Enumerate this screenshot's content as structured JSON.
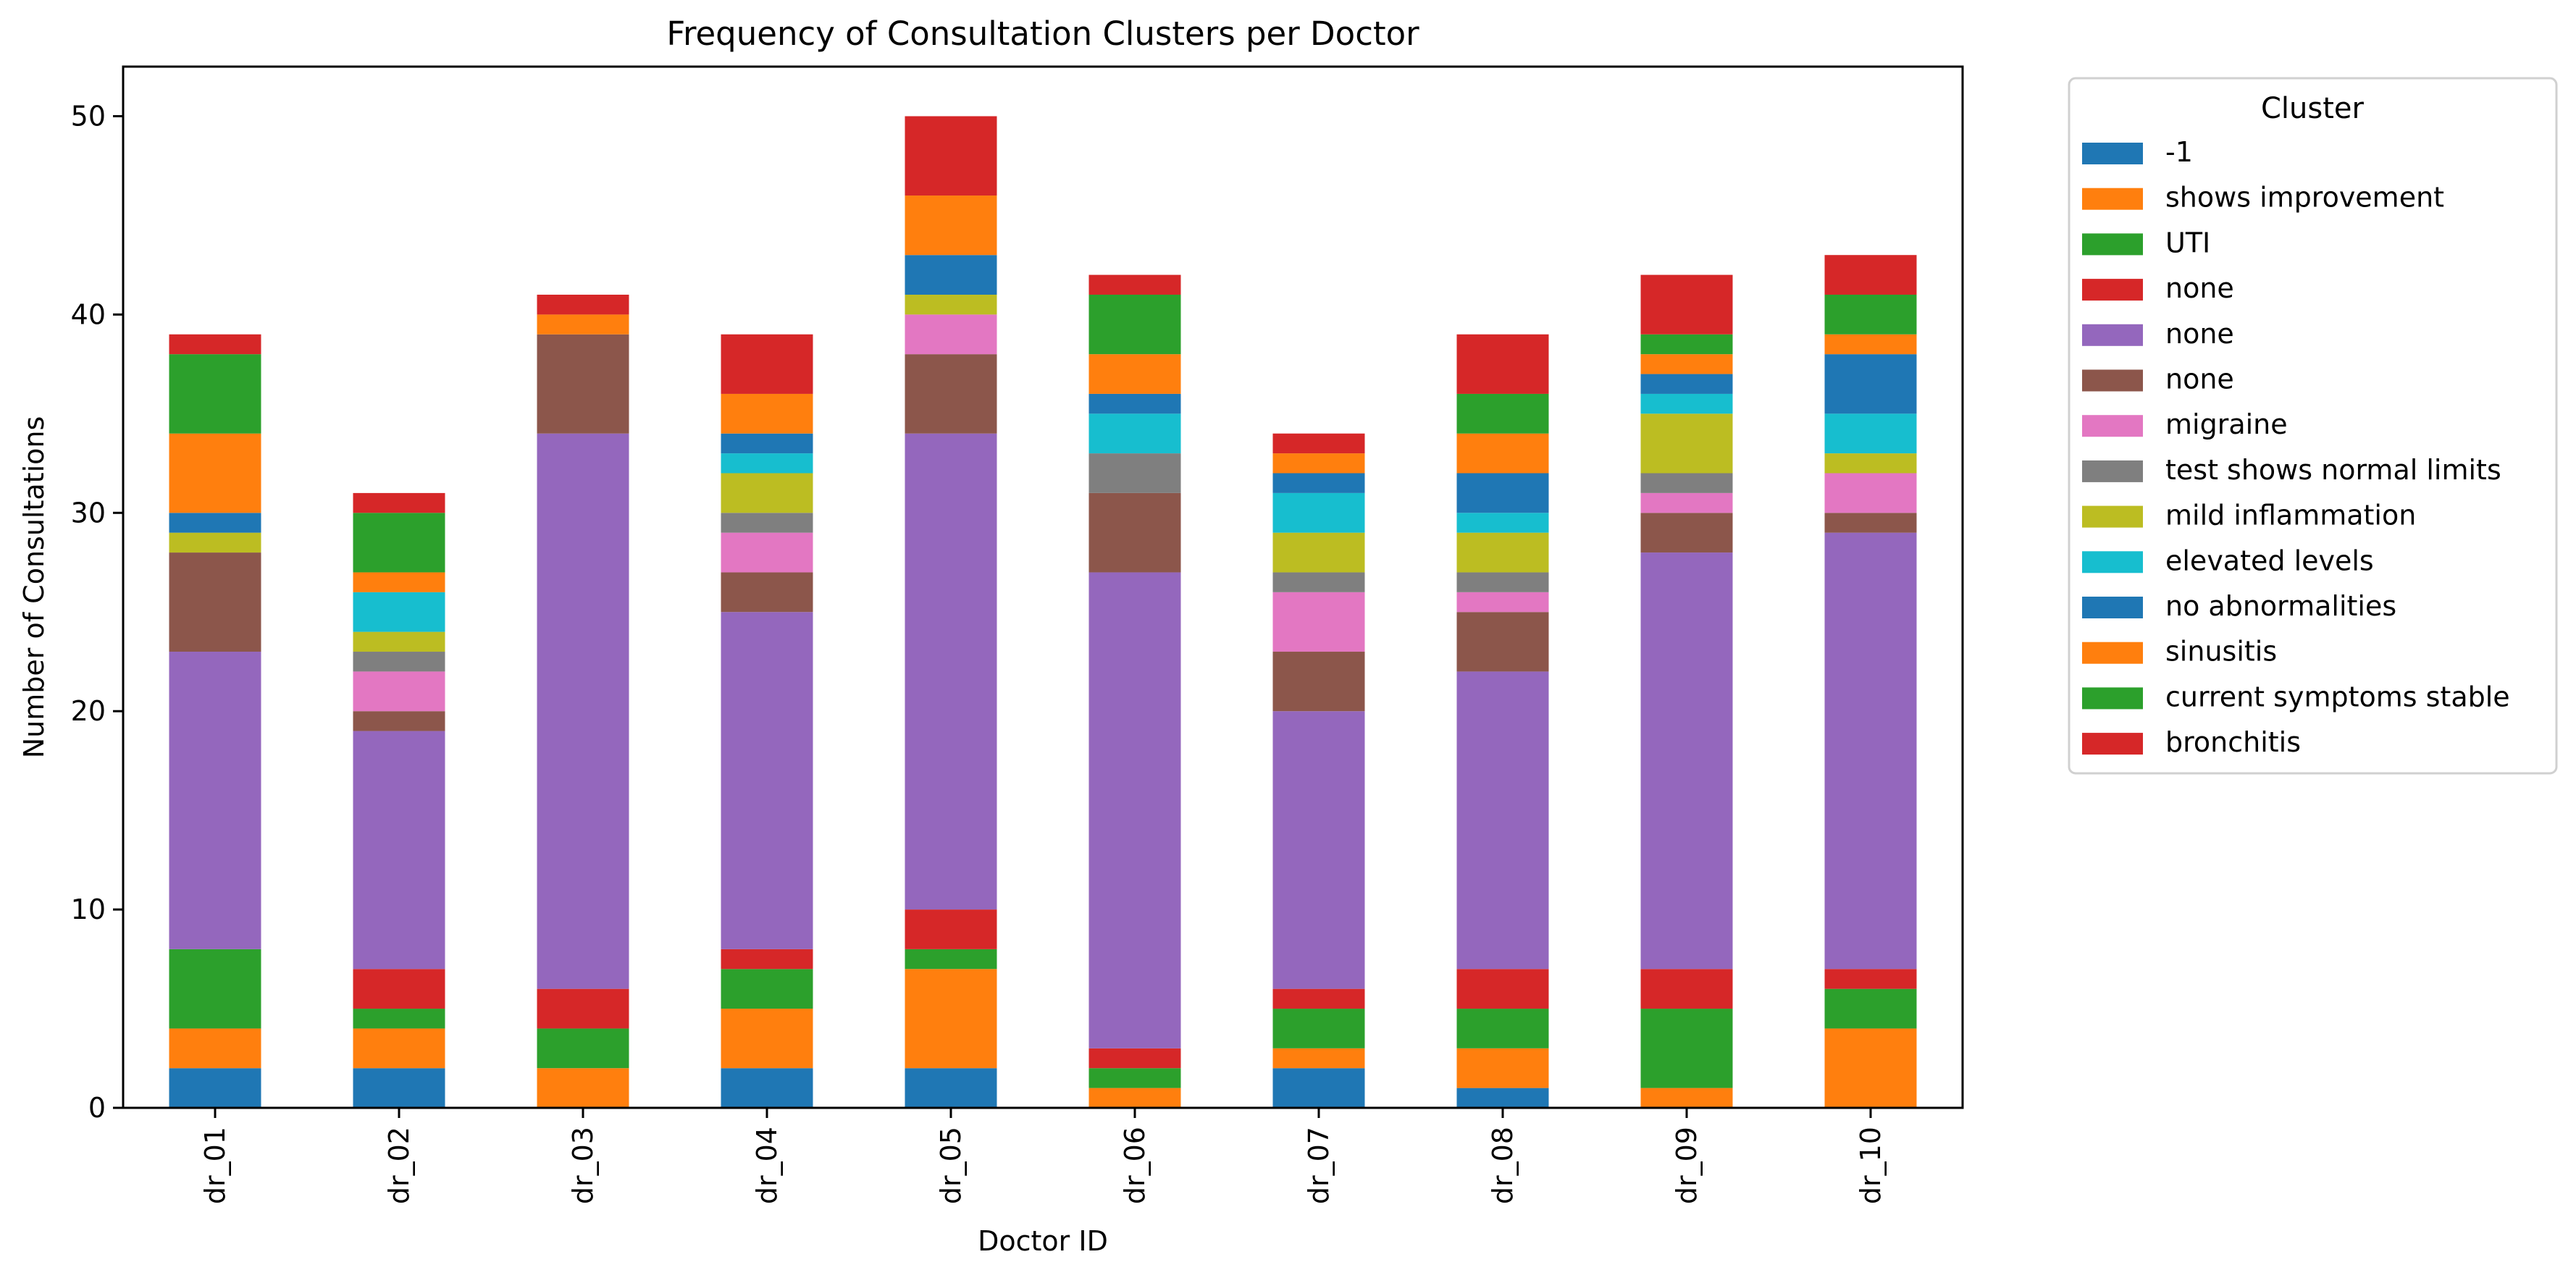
{
  "chart_data": {
    "type": "bar",
    "stacked": true,
    "title": "Frequency of Consultation Clusters per Doctor",
    "xlabel": "Doctor ID",
    "ylabel": "Number of Consultations",
    "ylim": [
      0,
      52.5
    ],
    "yticks": [
      0,
      10,
      20,
      30,
      40,
      50
    ],
    "grid": false,
    "legend": {
      "title": "Cluster",
      "placement": "outside-top-right"
    },
    "categories": [
      "dr_01",
      "dr_02",
      "dr_03",
      "dr_04",
      "dr_05",
      "dr_06",
      "dr_07",
      "dr_08",
      "dr_09",
      "dr_10"
    ],
    "series": [
      {
        "name": "-1",
        "color": "#1f77b4",
        "values": [
          2,
          2,
          0,
          2,
          2,
          0,
          2,
          1,
          0,
          0
        ]
      },
      {
        "name": "shows improvement",
        "color": "#ff7f0e",
        "values": [
          2,
          2,
          2,
          3,
          5,
          1,
          1,
          2,
          1,
          4
        ]
      },
      {
        "name": "UTI",
        "color": "#2ca02c",
        "values": [
          4,
          1,
          2,
          2,
          1,
          1,
          2,
          2,
          4,
          2
        ]
      },
      {
        "name": "none",
        "color": "#d62728",
        "values": [
          0,
          2,
          2,
          1,
          2,
          1,
          1,
          2,
          2,
          1
        ]
      },
      {
        "name": "none",
        "color": "#9467bd",
        "values": [
          15,
          12,
          28,
          17,
          24,
          24,
          14,
          15,
          21,
          22
        ]
      },
      {
        "name": "none",
        "color": "#8c564b",
        "values": [
          5,
          1,
          5,
          2,
          4,
          4,
          3,
          3,
          2,
          1
        ]
      },
      {
        "name": "migraine",
        "color": "#e377c2",
        "values": [
          0,
          2,
          0,
          2,
          2,
          0,
          3,
          1,
          1,
          2
        ]
      },
      {
        "name": "test shows normal limits",
        "color": "#7f7f7f",
        "values": [
          0,
          1,
          0,
          1,
          0,
          2,
          1,
          1,
          1,
          0
        ]
      },
      {
        "name": "mild inflammation",
        "color": "#bcbd22",
        "values": [
          1,
          1,
          0,
          2,
          1,
          0,
          2,
          2,
          3,
          1
        ]
      },
      {
        "name": "elevated levels",
        "color": "#17becf",
        "values": [
          0,
          2,
          0,
          1,
          0,
          2,
          2,
          1,
          1,
          2
        ]
      },
      {
        "name": "no abnormalities",
        "color": "#1f77b4",
        "values": [
          1,
          0,
          0,
          1,
          2,
          1,
          1,
          2,
          1,
          3
        ]
      },
      {
        "name": "sinusitis",
        "color": "#ff7f0e",
        "values": [
          4,
          1,
          1,
          2,
          3,
          2,
          1,
          2,
          1,
          1
        ]
      },
      {
        "name": "current symptoms stable",
        "color": "#2ca02c",
        "values": [
          4,
          3,
          0,
          0,
          0,
          3,
          0,
          2,
          1,
          2
        ]
      },
      {
        "name": "bronchitis",
        "color": "#d62728",
        "values": [
          1,
          1,
          1,
          3,
          4,
          1,
          1,
          3,
          3,
          2
        ]
      }
    ]
  }
}
